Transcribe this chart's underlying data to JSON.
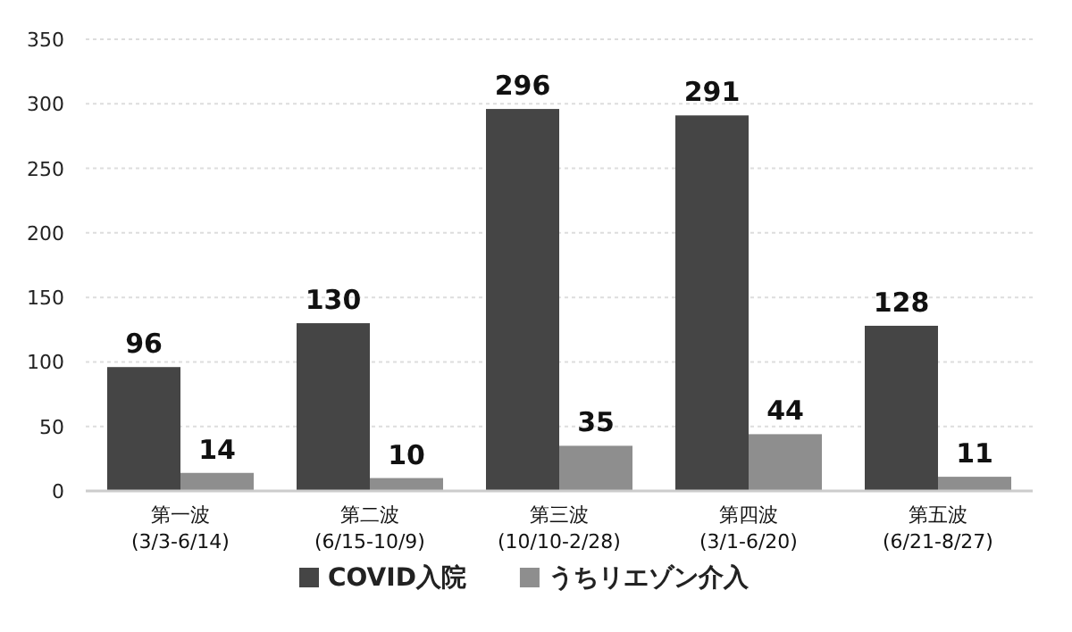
{
  "chart_data": {
    "type": "bar",
    "categories": [
      "第一波\n(3/3-6/14)",
      "第二波\n(6/15-10/9)",
      "第三波\n(10/10-2/28)",
      "第四波\n(3/1-6/20)",
      "第五波\n(6/21-8/27)"
    ],
    "series": [
      {
        "name": "COVID入院",
        "color": "#454545",
        "values": [
          96,
          130,
          296,
          291,
          128
        ]
      },
      {
        "name": "うちリエゾン介入",
        "color": "#8e8e8e",
        "values": [
          14,
          10,
          35,
          44,
          11
        ]
      }
    ],
    "ylim": [
      0,
      350
    ],
    "yticks": [
      0,
      50,
      100,
      150,
      200,
      250,
      300,
      350
    ],
    "grid": "y",
    "legend": "bottom",
    "data_labels": true
  }
}
